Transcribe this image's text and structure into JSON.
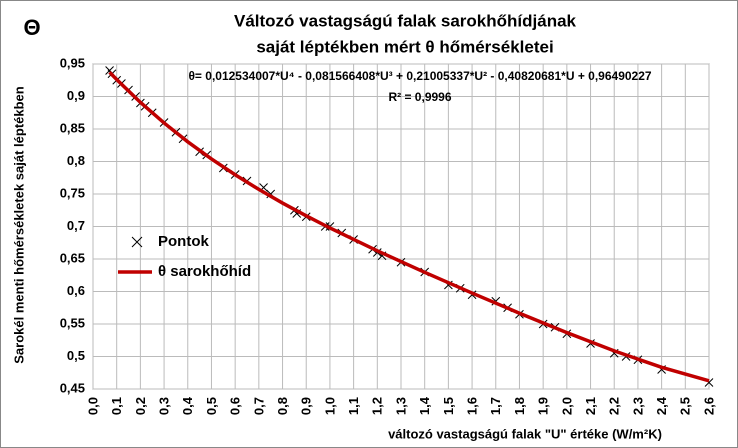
{
  "symbol": "Θ",
  "chart_data": {
    "type": "scatter-line",
    "title": "Változó vastagságú falak sarokhőhídjának",
    "subtitle": "saját léptékben mért θ hőmérsékletei",
    "x_label": "változó vastagságú falak \"U\" értéke  (W/m²K)",
    "y_label": "Sarokél menti  hőmérsékletek saját léptékben",
    "annotations": [
      "θ= 0,012534007*U⁴  - 0,081566408*U³  + 0,21005337*U²  - 0,40820681*U + 0,96490227",
      "R² = 0,9996"
    ],
    "grid": true,
    "legend": "left",
    "xlim": [
      0,
      2.6
    ],
    "ylim": [
      0.45,
      0.95
    ],
    "xticks": [
      {
        "value": 0,
        "label": "0,0"
      },
      {
        "value": 0.1,
        "label": "0,1"
      },
      {
        "value": 0.2,
        "label": "0,2"
      },
      {
        "value": 0.3,
        "label": "0,3"
      },
      {
        "value": 0.4,
        "label": "0,4"
      },
      {
        "value": 0.5,
        "label": "0,5"
      },
      {
        "value": 0.6,
        "label": "0,6"
      },
      {
        "value": 0.7,
        "label": "0,7"
      },
      {
        "value": 0.8,
        "label": "0,8"
      },
      {
        "value": 0.9,
        "label": "0,9"
      },
      {
        "value": 1,
        "label": "1,0"
      },
      {
        "value": 1.1,
        "label": "1,1"
      },
      {
        "value": 1.2,
        "label": "1,2"
      },
      {
        "value": 1.3,
        "label": "1,3"
      },
      {
        "value": 1.4,
        "label": "1,4"
      },
      {
        "value": 1.5,
        "label": "1,5"
      },
      {
        "value": 1.6,
        "label": "1,6"
      },
      {
        "value": 1.7,
        "label": "1,7"
      },
      {
        "value": 1.8,
        "label": "1,8"
      },
      {
        "value": 1.9,
        "label": "1,9"
      },
      {
        "value": 2,
        "label": "2,0"
      },
      {
        "value": 2.1,
        "label": "2,1"
      },
      {
        "value": 2.2,
        "label": "2,2"
      },
      {
        "value": 2.3,
        "label": "2,3"
      },
      {
        "value": 2.4,
        "label": "2,4"
      },
      {
        "value": 2.5,
        "label": "2,5"
      },
      {
        "value": 2.6,
        "label": "2,6"
      }
    ],
    "yticks": [
      {
        "value": 0.45,
        "label": "0,45"
      },
      {
        "value": 0.5,
        "label": "0,5"
      },
      {
        "value": 0.55,
        "label": "0,55"
      },
      {
        "value": 0.6,
        "label": "0,6"
      },
      {
        "value": 0.65,
        "label": "0,65"
      },
      {
        "value": 0.7,
        "label": "0,7"
      },
      {
        "value": 0.75,
        "label": "0,75"
      },
      {
        "value": 0.8,
        "label": "0,8"
      },
      {
        "value": 0.85,
        "label": "0,85"
      },
      {
        "value": 0.9,
        "label": "0,9"
      },
      {
        "value": 0.95,
        "label": "0,95"
      }
    ],
    "series": [
      {
        "name": "Pontok",
        "kind": "scatter",
        "color": "#000000",
        "x": [
          0.07,
          0.08,
          0.1,
          0.12,
          0.15,
          0.18,
          0.2,
          0.22,
          0.25,
          0.3,
          0.35,
          0.38,
          0.45,
          0.48,
          0.55,
          0.6,
          0.65,
          0.72,
          0.75,
          0.85,
          0.86,
          0.9,
          0.98,
          1.0,
          1.05,
          1.1,
          1.18,
          1.2,
          1.22,
          1.3,
          1.4,
          1.5,
          1.55,
          1.6,
          1.7,
          1.75,
          1.8,
          1.9,
          1.95,
          2.0,
          2.1,
          2.2,
          2.25,
          2.3,
          2.4,
          2.6
        ],
        "values": [
          0.94,
          0.935,
          0.925,
          0.92,
          0.91,
          0.9,
          0.89,
          0.885,
          0.875,
          0.86,
          0.845,
          0.835,
          0.815,
          0.81,
          0.79,
          0.78,
          0.77,
          0.76,
          0.75,
          0.725,
          0.72,
          0.715,
          0.7,
          0.7,
          0.69,
          0.68,
          0.665,
          0.66,
          0.655,
          0.645,
          0.63,
          0.61,
          0.605,
          0.595,
          0.585,
          0.575,
          0.565,
          0.55,
          0.545,
          0.535,
          0.52,
          0.505,
          0.5,
          0.495,
          0.48,
          0.46
        ]
      },
      {
        "name": "θ sarokhőhíd",
        "kind": "line",
        "color": "#c00000",
        "x": [
          0.07,
          0.1,
          0.2,
          0.3,
          0.4,
          0.5,
          0.6,
          0.7,
          0.8,
          0.9,
          1.0,
          1.2,
          1.4,
          1.6,
          1.8,
          2.0,
          2.2,
          2.4,
          2.6
        ],
        "values": [
          0.9373,
          0.9261,
          0.891,
          0.8593,
          0.8303,
          0.8039,
          0.7796,
          0.7571,
          0.7361,
          0.7164,
          0.6977,
          0.6626,
          0.6295,
          0.5976,
          0.5666,
          0.5367,
          0.5086,
          0.4834,
          0.4626
        ]
      }
    ]
  }
}
